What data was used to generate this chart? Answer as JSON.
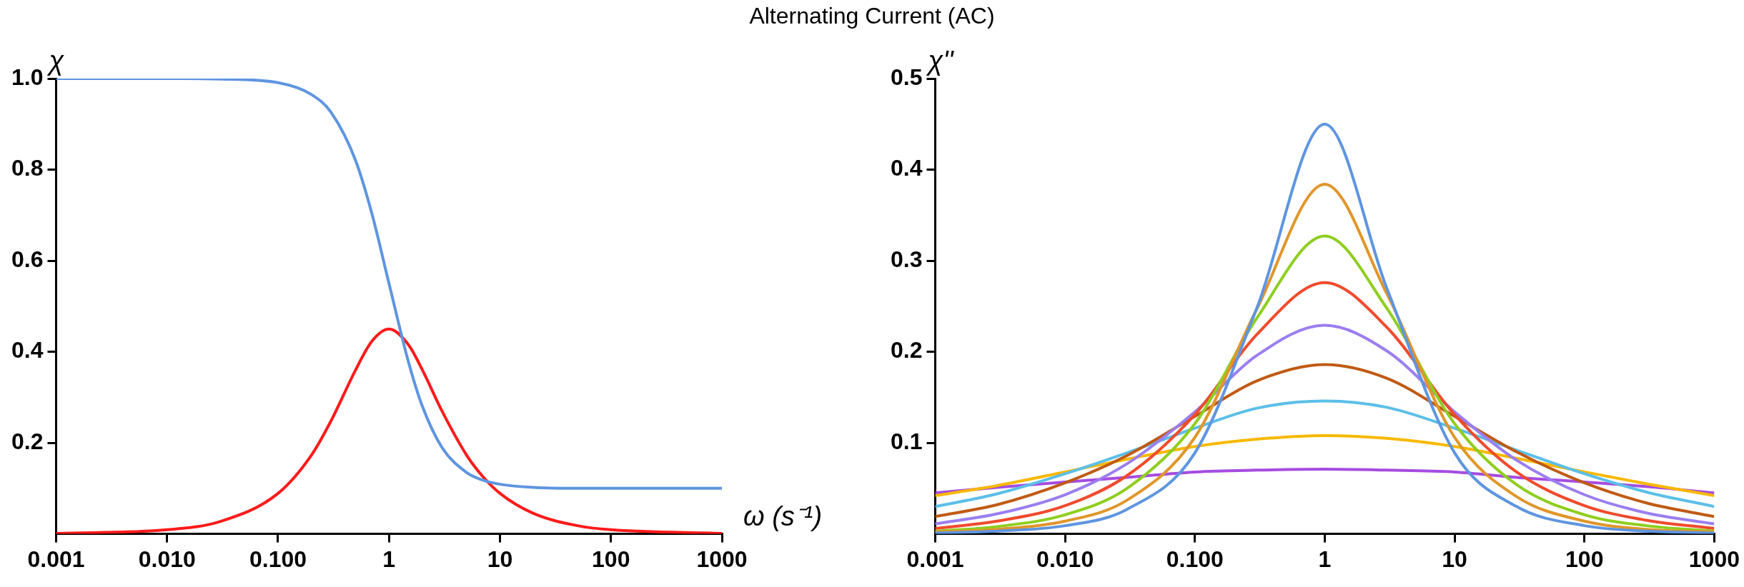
{
  "chart_data": [
    {
      "type": "line",
      "title": "Alternating Current (AC)",
      "xlabel": "ω (s⁻¹)",
      "ylabel": "χ",
      "log": "x",
      "x": [
        0.001,
        0.01,
        0.03,
        0.1,
        0.2,
        0.3,
        0.5,
        0.7,
        1,
        1.5,
        2,
        3,
        5,
        7,
        10,
        20,
        50,
        100,
        1000
      ],
      "series": [
        {
          "color": "#5e95e0",
          "values": [
            1.0,
            1.0,
            0.999,
            0.991,
            0.965,
            0.926,
            0.82,
            0.704,
            0.55,
            0.377,
            0.28,
            0.19,
            0.135,
            0.118,
            0.109,
            0.102,
            0.1,
            0.1,
            0.1
          ]
        },
        {
          "color": "#ff1a1a",
          "values": [
            0.001,
            0.009,
            0.027,
            0.089,
            0.173,
            0.248,
            0.36,
            0.423,
            0.45,
            0.415,
            0.36,
            0.27,
            0.173,
            0.126,
            0.089,
            0.045,
            0.018,
            0.009,
            0.001
          ]
        }
      ],
      "xlim": [
        0.001,
        1000
      ],
      "xticks": [
        {
          "value": 0.001,
          "label": "0.001"
        },
        {
          "value": 0.01,
          "label": "0.010"
        },
        {
          "value": 0.1,
          "label": "0.100"
        },
        1,
        10,
        100,
        1000
      ],
      "ylim": [
        0,
        1
      ],
      "yticks": [
        0.2,
        0.4,
        0.6,
        0.8,
        {
          "value": 1,
          "label": "1.0"
        }
      ],
      "grid": false,
      "legend": false
    },
    {
      "type": "line",
      "ylabel": "χ''",
      "log": "x",
      "x": [
        0.001,
        0.003,
        0.01,
        0.03,
        0.1,
        0.3,
        1,
        3,
        10,
        30,
        100,
        300,
        1000
      ],
      "series": [
        {
          "color": "#5e95e0",
          "values": [
            0.001,
            0.003,
            0.009,
            0.027,
            0.089,
            0.248,
            0.45,
            0.27,
            0.089,
            0.03,
            0.009,
            0.003,
            0.001
          ]
        },
        {
          "color": "#e0962a",
          "values": [
            0.002,
            0.005,
            0.014,
            0.037,
            0.106,
            0.247,
            0.384,
            0.264,
            0.106,
            0.041,
            0.014,
            0.005,
            0.002
          ]
        },
        {
          "color": "#8fce1e",
          "values": [
            0.003,
            0.008,
            0.021,
            0.05,
            0.121,
            0.237,
            0.327,
            0.248,
            0.121,
            0.054,
            0.021,
            0.009,
            0.003
          ]
        },
        {
          "color": "#f04a2c",
          "values": [
            0.006,
            0.014,
            0.031,
            0.064,
            0.131,
            0.219,
            0.276,
            0.227,
            0.131,
            0.068,
            0.031,
            0.015,
            0.006
          ]
        },
        {
          "color": "#9b7ef0",
          "values": [
            0.011,
            0.022,
            0.043,
            0.077,
            0.134,
            0.196,
            0.229,
            0.201,
            0.134,
            0.081,
            0.043,
            0.023,
            0.011
          ]
        },
        {
          "color": "#c05a14",
          "values": [
            0.019,
            0.032,
            0.056,
            0.086,
            0.129,
            0.168,
            0.186,
            0.171,
            0.129,
            0.09,
            0.056,
            0.034,
            0.019
          ]
        },
        {
          "color": "#5bbfe8",
          "values": [
            0.03,
            0.044,
            0.066,
            0.089,
            0.116,
            0.138,
            0.146,
            0.139,
            0.116,
            0.092,
            0.066,
            0.046,
            0.03
          ]
        },
        {
          "color": "#f8b800",
          "values": [
            0.042,
            0.053,
            0.068,
            0.082,
            0.096,
            0.104,
            0.108,
            0.105,
            0.096,
            0.083,
            0.068,
            0.055,
            0.042
          ]
        },
        {
          "color": "#a64ce0",
          "values": [
            0.045,
            0.051,
            0.057,
            0.062,
            0.068,
            0.07,
            0.071,
            0.07,
            0.068,
            0.062,
            0.057,
            0.052,
            0.045
          ]
        }
      ],
      "xlim": [
        0.001,
        1000
      ],
      "xticks": [
        {
          "value": 0.001,
          "label": "0.001"
        },
        {
          "value": 0.01,
          "label": "0.010"
        },
        {
          "value": 0.1,
          "label": "0.100"
        },
        1,
        10,
        100,
        1000
      ],
      "ylim": [
        0,
        0.5
      ],
      "yticks": [
        0.1,
        0.2,
        0.3,
        0.4,
        0.5
      ],
      "grid": false,
      "legend": false
    }
  ]
}
